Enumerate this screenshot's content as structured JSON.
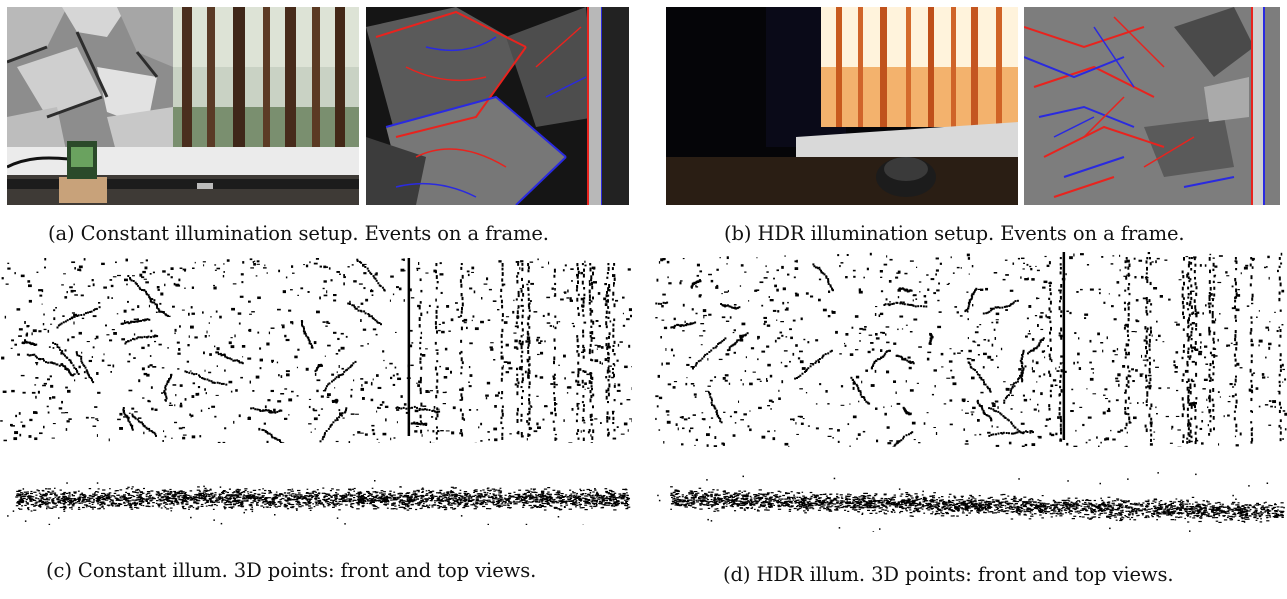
{
  "figure": {
    "captions": {
      "a": "(a) Constant illumination setup. Events on a frame.",
      "b": "(b) HDR illumination setup. Events on a frame.",
      "c": "(c) Constant illum. 3D points: front and top views.",
      "d": "(d) HDR illum. 3D points: front and top views."
    },
    "colors": {
      "event_positive": "#e8231e",
      "event_negative": "#2a2ae0",
      "points": "#000000",
      "page": "#ffffff"
    }
  }
}
